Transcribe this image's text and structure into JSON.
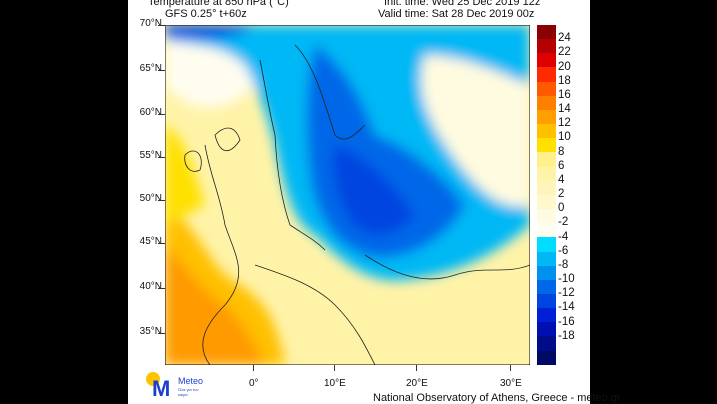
{
  "title": {
    "left_line1": "Temperature at 850 hPa (°C)",
    "left_line2": "GFS 0.25° t+60z",
    "right_line1": "Init. time: Wed 25 Dec 2019 12z",
    "right_line2": "Valid time: Sat 28 Dec 2019 00z"
  },
  "lat_labels": [
    "70°N",
    "65°N",
    "60°N",
    "55°N",
    "50°N",
    "45°N",
    "40°N",
    "35°N"
  ],
  "lon_labels": [
    "0°",
    "10°E",
    "20°E",
    "30°E"
  ],
  "colorbar": {
    "labels": [
      "24",
      "22",
      "20",
      "18",
      "16",
      "14",
      "12",
      "10",
      "8",
      "6",
      "4",
      "2",
      "0",
      "-2",
      "-4",
      "-6",
      "-8",
      "-10",
      "-12",
      "-14",
      "-16",
      "-18"
    ],
    "colors": [
      "#8b0000",
      "#b40000",
      "#e00000",
      "#ff2a00",
      "#ff5a00",
      "#ff8000",
      "#ffa000",
      "#ffc000",
      "#ffe000",
      "#fff08c",
      "#fff3a8",
      "#fff5bb",
      "#fff8cc",
      "#fffbe0",
      "#fffdf0",
      "#00ddff",
      "#00b8f5",
      "#0090ee",
      "#0068e8",
      "#0044e0",
      "#0020d8",
      "#0010b0",
      "#000c88",
      "#000a66"
    ]
  },
  "logo": {
    "name": "Meteo",
    "tagline": "Όλα για τον καιρό"
  },
  "footer": "National Observatory of Athens, Greece - meteo.gr"
}
